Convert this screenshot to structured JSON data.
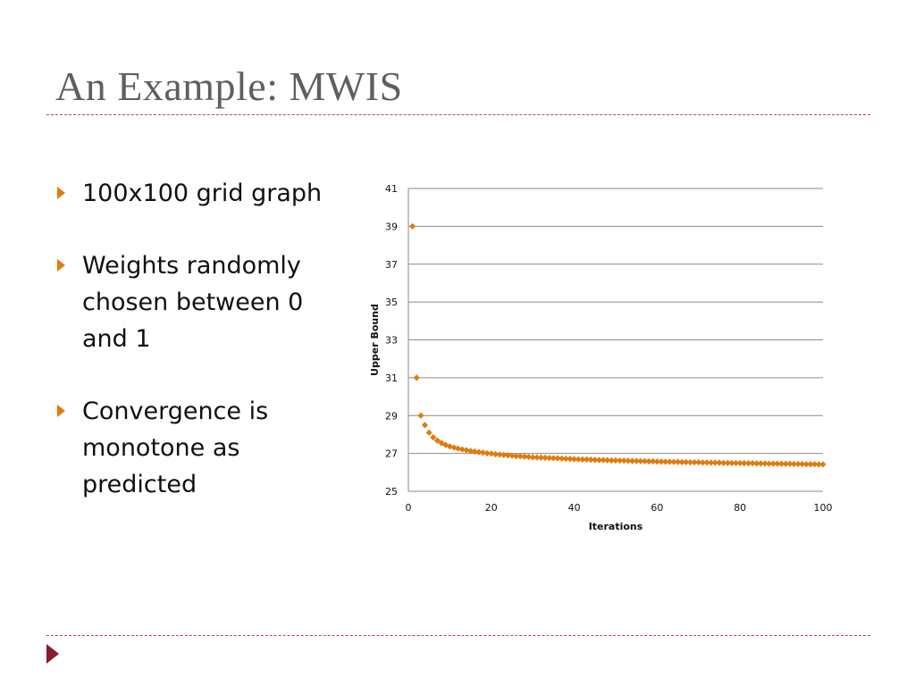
{
  "slide": {
    "title": "An Example: MWIS",
    "bullets": [
      "100x100 grid graph",
      "Weights randomly chosen between 0 and 1",
      "Convergence is monotone as predicted"
    ]
  },
  "colors": {
    "accent": "#e07b10",
    "rule": "#b9475a",
    "title": "#5f5f5f",
    "nav": "#8b1a2b"
  },
  "chart_data": {
    "type": "scatter",
    "xlabel": "Iterations",
    "ylabel": "Upper Bound",
    "xlim": [
      0,
      100
    ],
    "ylim": [
      25,
      41
    ],
    "x_ticks": [
      0,
      20,
      40,
      60,
      80,
      100
    ],
    "y_ticks": [
      25,
      27,
      29,
      31,
      33,
      35,
      37,
      39,
      41
    ],
    "grid": "horizontal",
    "legend": "none",
    "marker_color": "#e07b10",
    "series": [
      {
        "x": [
          1,
          2,
          3,
          4,
          5,
          6,
          7,
          8,
          9,
          10,
          11,
          12,
          13,
          14,
          15,
          16,
          17,
          18,
          19,
          20,
          21,
          22,
          23,
          24,
          25,
          26,
          27,
          28,
          29,
          30,
          31,
          32,
          33,
          34,
          35,
          36,
          37,
          38,
          39,
          40,
          41,
          42,
          43,
          44,
          45,
          46,
          47,
          48,
          49,
          50,
          51,
          52,
          53,
          54,
          55,
          56,
          57,
          58,
          59,
          60,
          61,
          62,
          63,
          64,
          65,
          66,
          67,
          68,
          69,
          70,
          71,
          72,
          73,
          74,
          75,
          76,
          77,
          78,
          79,
          80,
          81,
          82,
          83,
          84,
          85,
          86,
          87,
          88,
          89,
          90,
          91,
          92,
          93,
          94,
          95,
          96,
          97,
          98,
          99,
          100
        ],
        "values": [
          39.0,
          31.0,
          29.0,
          28.5,
          28.1,
          27.85,
          27.68,
          27.55,
          27.45,
          27.37,
          27.31,
          27.26,
          27.21,
          27.17,
          27.13,
          27.1,
          27.07,
          27.04,
          27.01,
          26.99,
          26.96,
          26.94,
          26.92,
          26.9,
          26.88,
          26.86,
          26.85,
          26.83,
          26.82,
          26.8,
          26.79,
          26.78,
          26.77,
          26.76,
          26.75,
          26.74,
          26.73,
          26.72,
          26.71,
          26.7,
          26.69,
          26.68,
          26.68,
          26.67,
          26.66,
          26.65,
          26.65,
          26.64,
          26.63,
          26.63,
          26.62,
          26.62,
          26.61,
          26.6,
          26.6,
          26.59,
          26.59,
          26.58,
          26.58,
          26.57,
          26.57,
          26.56,
          26.56,
          26.55,
          26.55,
          26.54,
          26.54,
          26.53,
          26.53,
          26.53,
          26.52,
          26.52,
          26.51,
          26.51,
          26.51,
          26.5,
          26.5,
          26.49,
          26.49,
          26.49,
          26.48,
          26.48,
          26.48,
          26.47,
          26.47,
          26.47,
          26.46,
          26.46,
          26.46,
          26.45,
          26.45,
          26.45,
          26.44,
          26.44,
          26.44,
          26.43,
          26.43,
          26.43,
          26.42,
          26.42
        ]
      }
    ]
  }
}
